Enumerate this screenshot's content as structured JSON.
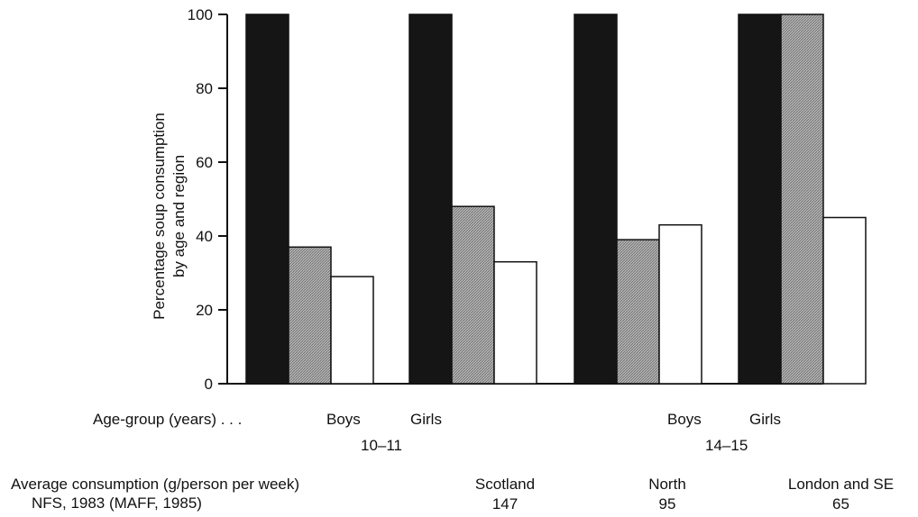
{
  "chart_data": {
    "type": "bar",
    "ylabel": [
      "Percentage soup consumption",
      "by age and region"
    ],
    "ylim": [
      0,
      100
    ],
    "yticks": [
      0,
      20,
      40,
      60,
      80,
      100
    ],
    "grid": false,
    "groups": [
      {
        "gender": "Boys",
        "age_group": "10–11",
        "values": [
          100,
          37,
          29
        ]
      },
      {
        "gender": "Girls",
        "age_group": "10–11",
        "values": [
          100,
          48,
          33
        ]
      },
      {
        "gender": "Boys",
        "age_group": "14–15",
        "values": [
          100,
          39,
          43
        ]
      },
      {
        "gender": "Girls",
        "age_group": "14–15",
        "values": [
          100,
          100,
          45
        ]
      }
    ],
    "series": [
      {
        "name": "Scotland",
        "fill": "#151515"
      },
      {
        "name": "North",
        "fill": "hatched-grey"
      },
      {
        "name": "London and SE",
        "fill": "#ffffff"
      }
    ]
  },
  "labels": {
    "age_group_prefix": "Age-group (years) . . .",
    "boys": "Boys",
    "girls": "Girls",
    "age_10_11": "10–11",
    "age_14_15": "14–15",
    "avg_line1": "Average consumption (g/person per week)",
    "avg_line2": "NFS, 1983 (MAFF, 1985)"
  },
  "regions": [
    {
      "name": "Scotland",
      "value": "147"
    },
    {
      "name": "North",
      "value": "95"
    },
    {
      "name": "London and SE",
      "value": "65"
    }
  ]
}
